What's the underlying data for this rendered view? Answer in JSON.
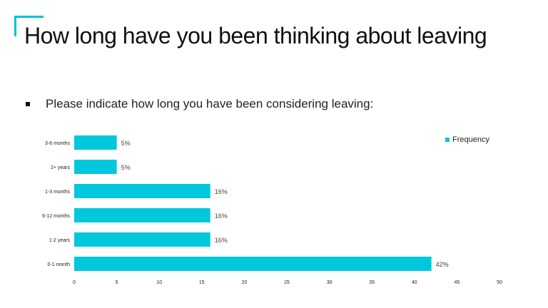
{
  "slide": {
    "title": "How long have you been thinking about leaving",
    "bullet": "Please indicate how long you have been considering leaving:"
  },
  "colors": {
    "accent": "#00c3d9",
    "bar": "#00c8dc"
  },
  "chart_data": {
    "type": "bar",
    "orientation": "horizontal",
    "categories": [
      "3-6 months",
      "2+ years",
      "1-3 months",
      "6-12 months",
      "1-2 years",
      "0-1 month"
    ],
    "series": [
      {
        "name": "Frequency",
        "values": [
          5,
          5,
          16,
          16,
          16,
          42
        ]
      }
    ],
    "data_labels": [
      "5%",
      "5%",
      "16%",
      "16%",
      "16%",
      "42%"
    ],
    "xlim": [
      0,
      50
    ],
    "xticks": [
      0,
      5,
      10,
      15,
      20,
      25,
      30,
      35,
      40,
      45,
      50
    ],
    "grid": false,
    "legend": "top-right"
  }
}
